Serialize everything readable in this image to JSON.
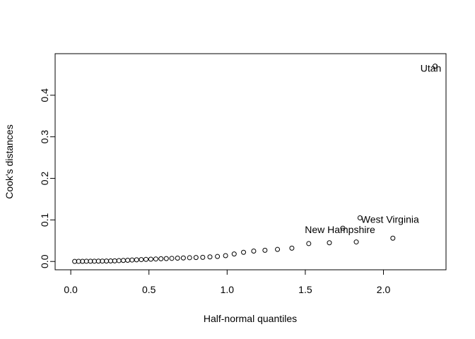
{
  "chart_data": {
    "type": "scatter",
    "title": "",
    "xlabel": "Half-normal quantiles",
    "ylabel": "Cook's distances",
    "xlim": [
      -0.1,
      2.4
    ],
    "ylim": [
      -0.02,
      0.5
    ],
    "xticks": [
      0.0,
      0.5,
      1.0,
      1.5,
      2.0
    ],
    "xtick_labels": [
      "0.0",
      "0.5",
      "1.0",
      "1.5",
      "2.0"
    ],
    "yticks": [
      0.0,
      0.1,
      0.2,
      0.3,
      0.4
    ],
    "ytick_labels": [
      "0.0",
      "0.1",
      "0.2",
      "0.3",
      "0.4"
    ],
    "grid": false,
    "marker": "open-circle",
    "points": [
      {
        "x": 0.025,
        "y": 0.0002
      },
      {
        "x": 0.05,
        "y": 0.0003
      },
      {
        "x": 0.075,
        "y": 0.0004
      },
      {
        "x": 0.1,
        "y": 0.0005
      },
      {
        "x": 0.126,
        "y": 0.0006
      },
      {
        "x": 0.151,
        "y": 0.0007
      },
      {
        "x": 0.177,
        "y": 0.0008
      },
      {
        "x": 0.202,
        "y": 0.0009
      },
      {
        "x": 0.228,
        "y": 0.001
      },
      {
        "x": 0.255,
        "y": 0.0012
      },
      {
        "x": 0.281,
        "y": 0.0015
      },
      {
        "x": 0.308,
        "y": 0.002
      },
      {
        "x": 0.336,
        "y": 0.0025
      },
      {
        "x": 0.364,
        "y": 0.003
      },
      {
        "x": 0.392,
        "y": 0.0035
      },
      {
        "x": 0.421,
        "y": 0.004
      },
      {
        "x": 0.451,
        "y": 0.0045
      },
      {
        "x": 0.481,
        "y": 0.005
      },
      {
        "x": 0.512,
        "y": 0.0055
      },
      {
        "x": 0.544,
        "y": 0.006
      },
      {
        "x": 0.577,
        "y": 0.0065
      },
      {
        "x": 0.611,
        "y": 0.007
      },
      {
        "x": 0.646,
        "y": 0.0075
      },
      {
        "x": 0.683,
        "y": 0.008
      },
      {
        "x": 0.72,
        "y": 0.0085
      },
      {
        "x": 0.76,
        "y": 0.009
      },
      {
        "x": 0.801,
        "y": 0.0095
      },
      {
        "x": 0.844,
        "y": 0.01
      },
      {
        "x": 0.89,
        "y": 0.011
      },
      {
        "x": 0.938,
        "y": 0.012
      },
      {
        "x": 0.99,
        "y": 0.014
      },
      {
        "x": 1.045,
        "y": 0.018
      },
      {
        "x": 1.105,
        "y": 0.022
      },
      {
        "x": 1.17,
        "y": 0.025
      },
      {
        "x": 1.242,
        "y": 0.027
      },
      {
        "x": 1.322,
        "y": 0.029
      },
      {
        "x": 1.414,
        "y": 0.032
      },
      {
        "x": 1.522,
        "y": 0.043
      },
      {
        "x": 1.654,
        "y": 0.045
      },
      {
        "x": 1.826,
        "y": 0.047
      },
      {
        "x": 2.06,
        "y": 0.056
      },
      {
        "x": 1.74,
        "y": 0.08
      },
      {
        "x": 1.85,
        "y": 0.105
      },
      {
        "x": 2.33,
        "y": 0.47
      }
    ],
    "annotations": [
      {
        "label": "New Hampshire",
        "x": 1.74,
        "y": 0.08
      },
      {
        "label": "West Virginia",
        "x": 2.06,
        "y": 0.105
      },
      {
        "label": "Utah",
        "x": 2.33,
        "y": 0.47
      }
    ]
  }
}
